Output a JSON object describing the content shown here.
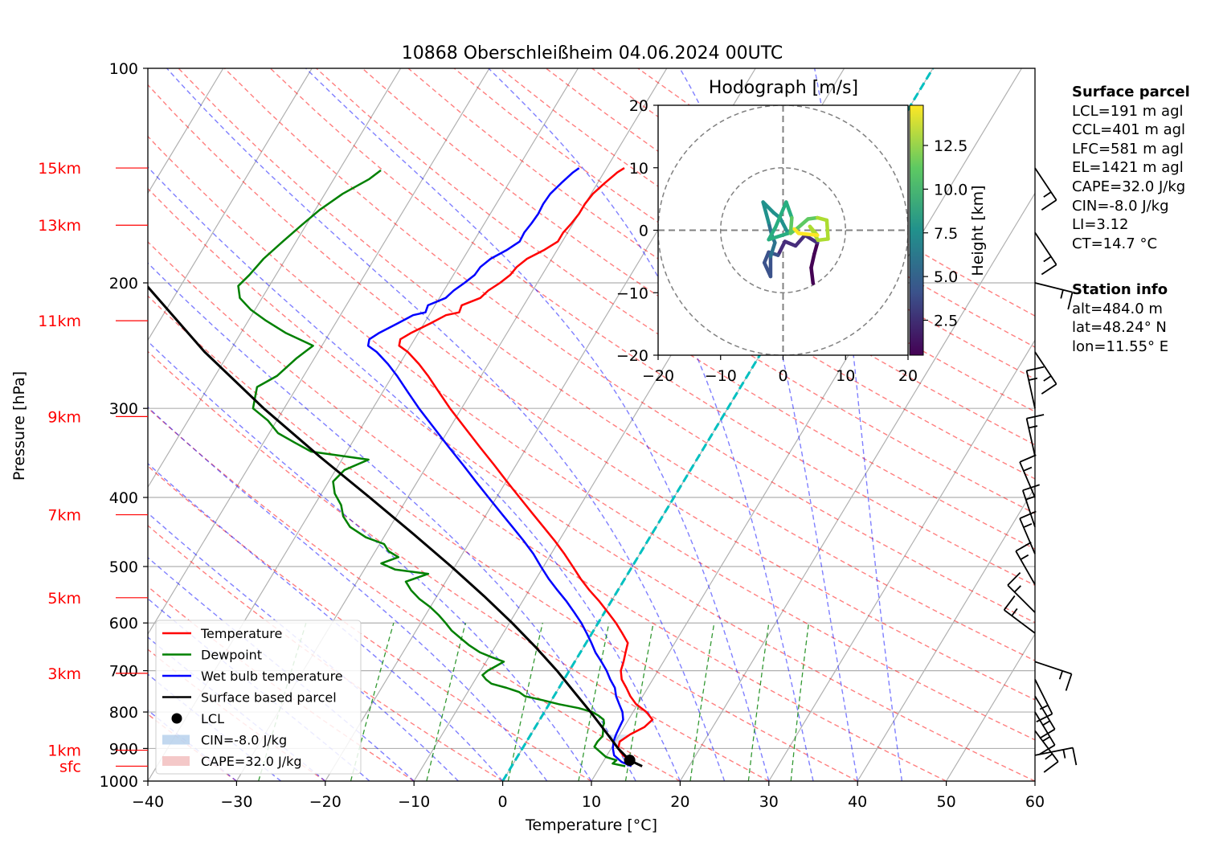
{
  "chart_data": {
    "type": "line",
    "title": "10868 Oberschleißheim 04.06.2024 00UTC",
    "xlabel": "Temperature [°C]",
    "ylabel": "Pressure [hPa]",
    "xlim": [
      -40,
      60
    ],
    "ylim": [
      1000,
      100
    ],
    "y_scale": "log",
    "skew": true,
    "grid": true,
    "x_ticks": [
      "−40",
      "−30",
      "−20",
      "−10",
      "0",
      "10",
      "20",
      "30",
      "40",
      "50",
      "60"
    ],
    "y_ticks": [
      "100",
      "200",
      "300",
      "400",
      "500",
      "600",
      "700",
      "800",
      "900",
      "1000"
    ],
    "height_labels": [
      {
        "label": "15km",
        "p": 138
      },
      {
        "label": "13km",
        "p": 166
      },
      {
        "label": "11km",
        "p": 226
      },
      {
        "label": "9km",
        "p": 308
      },
      {
        "label": "7km",
        "p": 423
      },
      {
        "label": "5km",
        "p": 553
      },
      {
        "label": "3km",
        "p": 706
      },
      {
        "label": "1km",
        "p": 905
      },
      {
        "label": "sfc",
        "p": 953
      }
    ],
    "series": [
      {
        "name": "Temperature",
        "color": "#ff0000",
        "points": [
          [
            953,
            14.7
          ],
          [
            940,
            13.4
          ],
          [
            920,
            11.8
          ],
          [
            900,
            10.8
          ],
          [
            880,
            10.5
          ],
          [
            860,
            11.2
          ],
          [
            840,
            12.3
          ],
          [
            820,
            12.7
          ],
          [
            800,
            11.5
          ],
          [
            780,
            9.8
          ],
          [
            760,
            8.6
          ],
          [
            740,
            7.6
          ],
          [
            720,
            6.5
          ],
          [
            700,
            5.8
          ],
          [
            680,
            5.5
          ],
          [
            660,
            5.1
          ],
          [
            640,
            4.7
          ],
          [
            620,
            3.4
          ],
          [
            600,
            2.0
          ],
          [
            580,
            0.4
          ],
          [
            560,
            -1.3
          ],
          [
            540,
            -3.2
          ],
          [
            520,
            -5.0
          ],
          [
            500,
            -6.7
          ],
          [
            480,
            -8.5
          ],
          [
            460,
            -10.5
          ],
          [
            440,
            -12.7
          ],
          [
            420,
            -15.0
          ],
          [
            400,
            -17.4
          ],
          [
            380,
            -19.9
          ],
          [
            360,
            -22.5
          ],
          [
            340,
            -25.3
          ],
          [
            320,
            -28.2
          ],
          [
            300,
            -31.3
          ],
          [
            285,
            -33.6
          ],
          [
            270,
            -36.0
          ],
          [
            260,
            -37.8
          ],
          [
            250,
            -39.9
          ],
          [
            245,
            -41.3
          ],
          [
            240,
            -41.6
          ],
          [
            235,
            -40.8
          ],
          [
            228,
            -39.3
          ],
          [
            222,
            -38.1
          ],
          [
            220,
            -36.8
          ],
          [
            215,
            -37.0
          ],
          [
            210,
            -35.4
          ],
          [
            205,
            -35.0
          ],
          [
            200,
            -34.2
          ],
          [
            195,
            -33.6
          ],
          [
            190,
            -33.4
          ],
          [
            185,
            -32.8
          ],
          [
            180,
            -31.5
          ],
          [
            175,
            -30.5
          ],
          [
            170,
            -30.5
          ],
          [
            165,
            -30.2
          ],
          [
            160,
            -30.0
          ],
          [
            155,
            -30.0
          ],
          [
            150,
            -29.8
          ],
          [
            145,
            -29.2
          ],
          [
            140,
            -28.5
          ],
          [
            138,
            -28.0
          ]
        ]
      },
      {
        "name": "Dewpoint",
        "color": "#008000",
        "points": [
          [
            953,
            12.8
          ],
          [
            945,
            11.2
          ],
          [
            935,
            11.4
          ],
          [
            925,
            10.0
          ],
          [
            910,
            9.0
          ],
          [
            895,
            8.0
          ],
          [
            880,
            8.0
          ],
          [
            865,
            8.2
          ],
          [
            850,
            7.9
          ],
          [
            840,
            7.6
          ],
          [
            830,
            7.5
          ],
          [
            820,
            7.2
          ],
          [
            810,
            6.4
          ],
          [
            800,
            5.4
          ],
          [
            790,
            3.6
          ],
          [
            780,
            1.1
          ],
          [
            770,
            -1.0
          ],
          [
            760,
            -3.3
          ],
          [
            750,
            -4.2
          ],
          [
            740,
            -5.9
          ],
          [
            730,
            -7.9
          ],
          [
            720,
            -8.8
          ],
          [
            710,
            -9.5
          ],
          [
            700,
            -9.2
          ],
          [
            690,
            -8.6
          ],
          [
            680,
            -8.0
          ],
          [
            670,
            -9.7
          ],
          [
            660,
            -11.3
          ],
          [
            645,
            -13.0
          ],
          [
            630,
            -14.5
          ],
          [
            615,
            -16.0
          ],
          [
            600,
            -17.2
          ],
          [
            585,
            -18.5
          ],
          [
            570,
            -20.0
          ],
          [
            555,
            -21.8
          ],
          [
            540,
            -23.3
          ],
          [
            525,
            -24.5
          ],
          [
            512,
            -22.5
          ],
          [
            505,
            -26.5
          ],
          [
            495,
            -28.5
          ],
          [
            485,
            -27.0
          ],
          [
            476,
            -28.5
          ],
          [
            465,
            -29.5
          ],
          [
            455,
            -32.0
          ],
          [
            440,
            -34.5
          ],
          [
            425,
            -36.0
          ],
          [
            410,
            -37.0
          ],
          [
            395,
            -38.5
          ],
          [
            380,
            -39.5
          ],
          [
            366,
            -39.0
          ],
          [
            354,
            -37.0
          ],
          [
            345,
            -44.0
          ],
          [
            335,
            -46.5
          ],
          [
            325,
            -49.0
          ],
          [
            312,
            -51.0
          ],
          [
            300,
            -53.5
          ],
          [
            290,
            -54.0
          ],
          [
            280,
            -54.5
          ],
          [
            270,
            -53.0
          ],
          [
            255,
            -52.0
          ],
          [
            245,
            -51.0
          ],
          [
            235,
            -55.0
          ],
          [
            226,
            -58.0
          ],
          [
            218,
            -60.5
          ],
          [
            210,
            -62.5
          ],
          [
            202,
            -63.5
          ],
          [
            195,
            -63.0
          ],
          [
            185,
            -62.5
          ],
          [
            175,
            -61.5
          ],
          [
            166,
            -60.5
          ],
          [
            158,
            -59.5
          ],
          [
            150,
            -58.0
          ],
          [
            143,
            -56.0
          ],
          [
            139,
            -55.3
          ]
        ]
      },
      {
        "name": "Wet bulb temperature",
        "color": "#0000ff",
        "points": [
          [
            953,
            13.5
          ],
          [
            940,
            12.1
          ],
          [
            920,
            10.8
          ],
          [
            900,
            10.2
          ],
          [
            880,
            9.8
          ],
          [
            860,
            9.6
          ],
          [
            840,
            9.5
          ],
          [
            820,
            9.4
          ],
          [
            800,
            8.8
          ],
          [
            780,
            7.9
          ],
          [
            760,
            7.0
          ],
          [
            740,
            6.3
          ],
          [
            720,
            5.2
          ],
          [
            700,
            4.2
          ],
          [
            680,
            3.0
          ],
          [
            660,
            1.7
          ],
          [
            640,
            0.6
          ],
          [
            620,
            -0.6
          ],
          [
            600,
            -1.9
          ],
          [
            580,
            -3.4
          ],
          [
            560,
            -5.0
          ],
          [
            540,
            -6.8
          ],
          [
            520,
            -8.6
          ],
          [
            500,
            -10.3
          ],
          [
            480,
            -12.0
          ],
          [
            460,
            -14.0
          ],
          [
            440,
            -16.2
          ],
          [
            420,
            -18.5
          ],
          [
            400,
            -20.9
          ],
          [
            380,
            -23.4
          ],
          [
            360,
            -26.0
          ],
          [
            340,
            -28.8
          ],
          [
            320,
            -31.7
          ],
          [
            300,
            -34.8
          ],
          [
            285,
            -37.1
          ],
          [
            270,
            -39.5
          ],
          [
            260,
            -41.3
          ],
          [
            250,
            -43.4
          ],
          [
            245,
            -44.8
          ],
          [
            240,
            -45.1
          ],
          [
            235,
            -44.4
          ],
          [
            228,
            -43.0
          ],
          [
            222,
            -41.8
          ],
          [
            220,
            -40.6
          ],
          [
            215,
            -40.8
          ],
          [
            210,
            -39.3
          ],
          [
            205,
            -38.9
          ],
          [
            200,
            -38.2
          ],
          [
            195,
            -37.6
          ],
          [
            190,
            -37.5
          ],
          [
            185,
            -36.9
          ],
          [
            180,
            -35.7
          ],
          [
            175,
            -34.8
          ],
          [
            170,
            -34.9
          ],
          [
            165,
            -34.7
          ],
          [
            160,
            -34.6
          ],
          [
            155,
            -34.7
          ],
          [
            150,
            -34.6
          ],
          [
            145,
            -34.1
          ],
          [
            140,
            -33.5
          ],
          [
            138,
            -33.1
          ]
        ]
      },
      {
        "name": "Surface based parcel",
        "color": "#000000",
        "points": [
          [
            953,
            14.7
          ],
          [
            935,
            12.9
          ],
          [
            900,
            10.8
          ],
          [
            850,
            8.1
          ],
          [
            800,
            5.2
          ],
          [
            750,
            2.0
          ],
          [
            700,
            -1.4
          ],
          [
            650,
            -5.3
          ],
          [
            600,
            -9.7
          ],
          [
            550,
            -14.7
          ],
          [
            500,
            -20.4
          ],
          [
            450,
            -26.9
          ],
          [
            400,
            -34.3
          ],
          [
            350,
            -42.8
          ],
          [
            300,
            -52.3
          ],
          [
            250,
            -62.8
          ],
          [
            200,
            -74.3
          ],
          [
            170,
            -81.8
          ],
          [
            150,
            -87.2
          ],
          [
            138,
            -90.6
          ]
        ]
      }
    ],
    "lcl": {
      "p": 935,
      "t": 12.9
    },
    "legend": {
      "placement": "lower-left",
      "entries": [
        "Temperature",
        "Dewpoint",
        "Wet bulb temperature",
        "Surface based parcel",
        "LCL",
        "CIN=-8.0 J/kg",
        "CAPE=32.0 J/kg"
      ]
    },
    "hodograph": {
      "title": "Hodograph [m/s]",
      "xlim": [
        -20,
        20
      ],
      "ylim": [
        -20,
        20
      ],
      "x_ticks": [
        "−20",
        "−10",
        "0",
        "10",
        "20"
      ],
      "y_ticks": [
        "20",
        "10",
        "0",
        "−10",
        "−20"
      ],
      "rings": [
        10,
        20
      ],
      "colorbar_label": "Height [km]",
      "colorbar_ticks": [
        "2.5",
        "5.0",
        "7.5",
        "10.0",
        "12.5"
      ],
      "colorbar_range": [
        0.5,
        14.8
      ],
      "trace": [
        [
          4.8,
          -8.5,
          0.5
        ],
        [
          4.5,
          -6,
          0.8
        ],
        [
          5,
          -3.8,
          1.2
        ],
        [
          5.5,
          -2,
          1.6
        ],
        [
          3.5,
          -0.8,
          2.0
        ],
        [
          2,
          -2.5,
          2.4
        ],
        [
          0.3,
          -1.8,
          2.8
        ],
        [
          -0.8,
          -4,
          3.2
        ],
        [
          -2.3,
          -3.5,
          3.6
        ],
        [
          -3,
          -5.2,
          4.0
        ],
        [
          -2,
          -7.4,
          4.6
        ],
        [
          -2,
          -4.2,
          5.1
        ],
        [
          -1.3,
          -2,
          5.6
        ],
        [
          -1.8,
          -0.8,
          6.2
        ],
        [
          -2.3,
          1.2,
          6.8
        ],
        [
          -3.2,
          4.5,
          7.3
        ],
        [
          -1.5,
          2.8,
          7.8
        ],
        [
          -0.5,
          2,
          8.3
        ],
        [
          0.8,
          -0.5,
          8.8
        ],
        [
          -2.3,
          -1.5,
          9.3
        ],
        [
          -1.2,
          0.5,
          9.7
        ],
        [
          0.5,
          4.5,
          10.2
        ],
        [
          1.4,
          2,
          10.6
        ],
        [
          1.2,
          -0.5,
          11.0
        ],
        [
          2.5,
          0.5,
          11.4
        ],
        [
          4,
          1.8,
          11.8
        ],
        [
          5.5,
          2,
          12.2
        ],
        [
          7,
          1.6,
          12.6
        ],
        [
          7.2,
          -1.4,
          13.0
        ],
        [
          5.6,
          -1.6,
          13.3
        ],
        [
          4.3,
          0.6,
          13.6
        ],
        [
          5.5,
          -0.8,
          14.0
        ],
        [
          2.5,
          -0.5,
          14.3
        ],
        [
          1.8,
          0.2,
          14.6
        ]
      ]
    },
    "winds": [
      {
        "p": 138,
        "u": -4,
        "v": 6
      },
      {
        "p": 170,
        "u": -4,
        "v": 6
      },
      {
        "p": 200,
        "u": -4,
        "v": 1
      },
      {
        "p": 250,
        "u": -4,
        "v": 6
      },
      {
        "p": 300,
        "u": 2,
        "v": -9
      },
      {
        "p": 350,
        "u": 2,
        "v": -9
      },
      {
        "p": 400,
        "u": 3,
        "v": -7
      },
      {
        "p": 440,
        "u": 3,
        "v": -9
      },
      {
        "p": 480,
        "u": 3,
        "v": -7
      },
      {
        "p": 530,
        "u": 4,
        "v": -7
      },
      {
        "p": 580,
        "u": 5,
        "v": -5
      },
      {
        "p": 620,
        "u": 4,
        "v": -3
      },
      {
        "p": 680,
        "u": -6,
        "v": 2
      },
      {
        "p": 720,
        "u": -3,
        "v": 6
      },
      {
        "p": 760,
        "u": -3,
        "v": 5
      },
      {
        "p": 800,
        "u": -3,
        "v": 5
      },
      {
        "p": 850,
        "u": -3,
        "v": 4
      },
      {
        "p": 920,
        "u": -5,
        "v": -1
      }
    ]
  },
  "side_panel": {
    "surface_heading": "Surface parcel",
    "surface_lines": [
      "LCL=191 m agl",
      "CCL=401 m agl",
      "LFC=581 m agl",
      "EL=1421 m agl",
      "CAPE=32.0 J/kg",
      "CIN=-8.0 J/kg",
      "LI=3.12",
      "CT=14.7 °C"
    ],
    "station_heading": "Station info",
    "station_lines": [
      "alt=484.0 m",
      "lat=48.24° N",
      "lon=11.55° E"
    ]
  }
}
